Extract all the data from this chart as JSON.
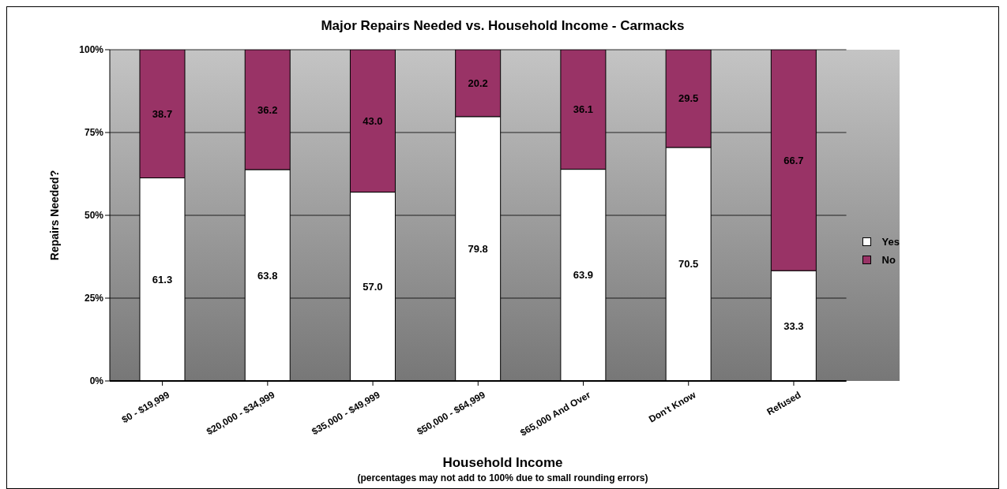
{
  "chart_data": {
    "type": "bar",
    "title": "Major Repairs Needed vs. Household Income - Carmacks",
    "xlabel": "Household Income",
    "ylabel": "Repairs Needed?",
    "annotations": [
      "(percentages may not add to 100% due to small rounding errors)"
    ],
    "categories": [
      "$0 - $19,999",
      "$20,000 - $34,999",
      "$35,000 - $49,999",
      "$50,000 - $64,999",
      "$65,000 And Over",
      "Don't Know",
      "Refused"
    ],
    "stacked": true,
    "series": [
      {
        "name": "Yes",
        "color": "#ffffff",
        "values": [
          61.3,
          63.8,
          57.0,
          79.8,
          63.9,
          70.5,
          33.3
        ],
        "value_labels": [
          "61.3",
          "63.8",
          "57.0",
          "79.8",
          "63.9",
          "70.5",
          "33.3"
        ]
      },
      {
        "name": "No",
        "color": "#993366",
        "values": [
          38.7,
          36.2,
          43.0,
          20.2,
          36.1,
          29.5,
          66.7
        ],
        "value_labels": [
          "38.7",
          "36.2",
          "43.0",
          "20.2",
          "36.1",
          "29.5",
          "66.7"
        ]
      }
    ],
    "ylim": [
      0,
      100
    ],
    "yticks": [
      {
        "value": 0,
        "label": "0%"
      },
      {
        "value": 25,
        "label": "25%"
      },
      {
        "value": 50,
        "label": "50%"
      },
      {
        "value": 75,
        "label": "75%"
      },
      {
        "value": 100,
        "label": "100%"
      }
    ],
    "grid": "y",
    "legend": "right"
  }
}
